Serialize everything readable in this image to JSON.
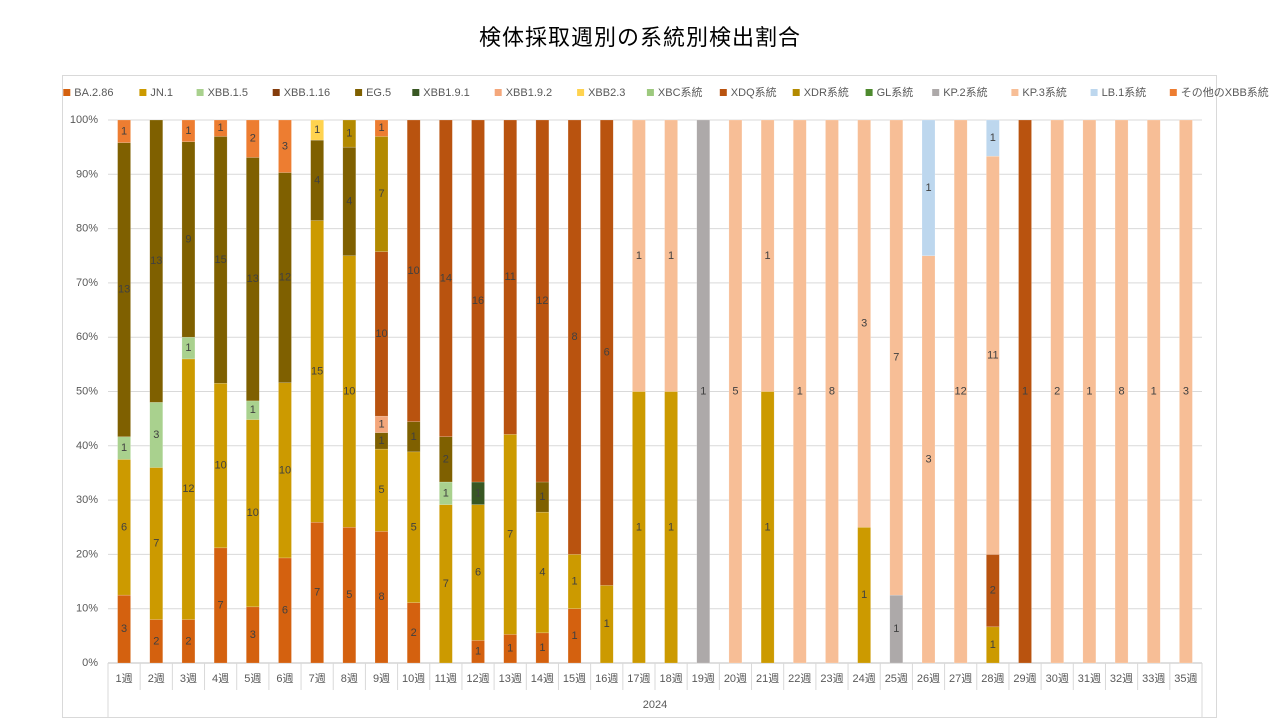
{
  "chart_data": {
    "type": "bar",
    "stacked": "percent",
    "title": "検体採取週別の系統別検出割合",
    "xlabel": "",
    "group_label": "2024",
    "ylabel": "",
    "ylim": [
      0,
      100
    ],
    "yticks": [
      "0%",
      "10%",
      "20%",
      "30%",
      "40%",
      "50%",
      "60%",
      "70%",
      "80%",
      "90%",
      "100%"
    ],
    "grid": true,
    "legend_position": "top",
    "categories": [
      "1週",
      "2週",
      "3週",
      "4週",
      "5週",
      "6週",
      "7週",
      "8週",
      "9週",
      "10週",
      "11週",
      "12週",
      "13週",
      "14週",
      "15週",
      "16週",
      "17週",
      "18週",
      "19週",
      "20週",
      "21週",
      "22週",
      "23週",
      "24週",
      "25週",
      "26週",
      "27週",
      "28週",
      "29週",
      "30週",
      "31週",
      "32週",
      "33週",
      "35週"
    ],
    "series": [
      {
        "name": "BA.2.86",
        "color": "#D4610F",
        "values": [
          3,
          2,
          2,
          7,
          3,
          6,
          7,
          5,
          8,
          2,
          0,
          1,
          1,
          1,
          1,
          0,
          0,
          0,
          0,
          0,
          0,
          0,
          0,
          0,
          0,
          0,
          0,
          0,
          0,
          0,
          0,
          0,
          0,
          0
        ]
      },
      {
        "name": "JN.1",
        "color": "#CC9A00",
        "values": [
          6,
          7,
          12,
          10,
          10,
          10,
          15,
          10,
          5,
          5,
          7,
          6,
          7,
          4,
          1,
          1,
          1,
          1,
          0,
          0,
          1,
          0,
          0,
          1,
          0,
          0,
          0,
          1,
          0,
          0,
          0,
          0,
          0,
          0
        ]
      },
      {
        "name": "XBB.1.5",
        "color": "#A9D18E",
        "values": [
          1,
          3,
          1,
          0,
          1,
          0,
          0,
          0,
          0,
          0,
          1,
          0,
          0,
          0,
          0,
          0,
          0,
          0,
          0,
          0,
          0,
          0,
          0,
          0,
          0,
          0,
          0,
          0,
          0,
          0,
          0,
          0,
          0,
          0
        ]
      },
      {
        "name": "XBB.1.16",
        "color": "#843C0C",
        "values": [
          0,
          0,
          0,
          0,
          0,
          0,
          0,
          0,
          0,
          0,
          0,
          0,
          0,
          0,
          0,
          0,
          0,
          0,
          0,
          0,
          0,
          0,
          0,
          0,
          0,
          0,
          0,
          0,
          0,
          0,
          0,
          0,
          0,
          0
        ]
      },
      {
        "name": "EG.5",
        "color": "#7F6000",
        "values": [
          13,
          13,
          9,
          15,
          13,
          12,
          4,
          4,
          1,
          1,
          2,
          0,
          0,
          1,
          0,
          0,
          0,
          0,
          0,
          0,
          0,
          0,
          0,
          0,
          0,
          0,
          0,
          0,
          0,
          0,
          0,
          0,
          0,
          0
        ]
      },
      {
        "name": "XBB1.9.1",
        "color": "#385723",
        "values": [
          0,
          0,
          0,
          0,
          0,
          0,
          0,
          0,
          0,
          0,
          0,
          1,
          0,
          0,
          0,
          0,
          0,
          0,
          0,
          0,
          0,
          0,
          0,
          0,
          0,
          0,
          0,
          0,
          0,
          0,
          0,
          0,
          0,
          0
        ]
      },
      {
        "name": "XBB1.9.2",
        "color": "#F4A77B",
        "values": [
          0,
          0,
          0,
          0,
          0,
          0,
          0,
          0,
          1,
          0,
          0,
          0,
          0,
          0,
          0,
          0,
          0,
          0,
          0,
          0,
          0,
          0,
          0,
          0,
          0,
          0,
          0,
          0,
          0,
          0,
          0,
          0,
          0,
          0
        ]
      },
      {
        "name": "XBB2.3",
        "color": "#FFD34F",
        "values": [
          0,
          0,
          0,
          0,
          0,
          0,
          1,
          0,
          0,
          0,
          0,
          0,
          0,
          0,
          0,
          0,
          0,
          0,
          0,
          0,
          0,
          0,
          0,
          0,
          0,
          0,
          0,
          0,
          0,
          0,
          0,
          0,
          0,
          0
        ]
      },
      {
        "name": "XBC系統",
        "color": "#9DC97E",
        "values": [
          0,
          0,
          0,
          0,
          0,
          0,
          0,
          0,
          0,
          0,
          0,
          0,
          0,
          0,
          0,
          0,
          0,
          0,
          0,
          0,
          0,
          0,
          0,
          0,
          0,
          0,
          0,
          0,
          0,
          0,
          0,
          0,
          0,
          0
        ]
      },
      {
        "name": "XDQ系統",
        "color": "#B9530F",
        "values": [
          0,
          0,
          0,
          0,
          0,
          0,
          0,
          0,
          10,
          10,
          14,
          16,
          11,
          12,
          8,
          6,
          0,
          0,
          0,
          0,
          0,
          0,
          0,
          0,
          0,
          0,
          0,
          2,
          1,
          0,
          0,
          0,
          0,
          0
        ]
      },
      {
        "name": "XDR系統",
        "color": "#B38A00",
        "values": [
          0,
          0,
          0,
          0,
          0,
          0,
          0,
          1,
          7,
          0,
          0,
          0,
          0,
          0,
          0,
          0,
          0,
          0,
          0,
          0,
          0,
          0,
          0,
          0,
          0,
          0,
          0,
          0,
          0,
          0,
          0,
          0,
          0,
          0
        ]
      },
      {
        "name": "GL系統",
        "color": "#4E8A2E",
        "values": [
          0,
          0,
          0,
          0,
          0,
          0,
          0,
          0,
          0,
          0,
          0,
          0,
          0,
          0,
          0,
          0,
          0,
          0,
          0,
          0,
          0,
          0,
          0,
          0,
          0,
          0,
          0,
          0,
          0,
          0,
          0,
          0,
          0,
          0
        ]
      },
      {
        "name": "KP.2系統",
        "color": "#ADA9A9",
        "values": [
          0,
          0,
          0,
          0,
          0,
          0,
          0,
          0,
          0,
          0,
          0,
          0,
          0,
          0,
          0,
          0,
          0,
          0,
          1,
          0,
          0,
          0,
          0,
          0,
          1,
          0,
          0,
          0,
          0,
          0,
          0,
          0,
          0,
          0
        ]
      },
      {
        "name": "KP.3系統",
        "color": "#F7BE96",
        "values": [
          0,
          0,
          0,
          0,
          0,
          0,
          0,
          0,
          0,
          0,
          0,
          0,
          0,
          0,
          0,
          0,
          1,
          1,
          0,
          5,
          1,
          1,
          8,
          3,
          7,
          3,
          12,
          11,
          0,
          2,
          1,
          8,
          1,
          3
        ]
      },
      {
        "name": "LB.1系統",
        "color": "#BDD7EE",
        "values": [
          0,
          0,
          0,
          0,
          0,
          0,
          0,
          0,
          0,
          0,
          0,
          0,
          0,
          0,
          0,
          0,
          0,
          0,
          0,
          0,
          0,
          0,
          0,
          0,
          0,
          1,
          0,
          1,
          0,
          0,
          0,
          0,
          0,
          0
        ]
      },
      {
        "name": "その他のXBB系統",
        "color": "#ED7D31",
        "values": [
          1,
          0,
          1,
          1,
          2,
          3,
          0,
          0,
          1,
          0,
          0,
          0,
          0,
          0,
          0,
          0,
          0,
          0,
          0,
          0,
          0,
          0,
          0,
          0,
          0,
          0,
          0,
          0,
          0,
          0,
          0,
          0,
          0,
          0
        ]
      }
    ]
  }
}
